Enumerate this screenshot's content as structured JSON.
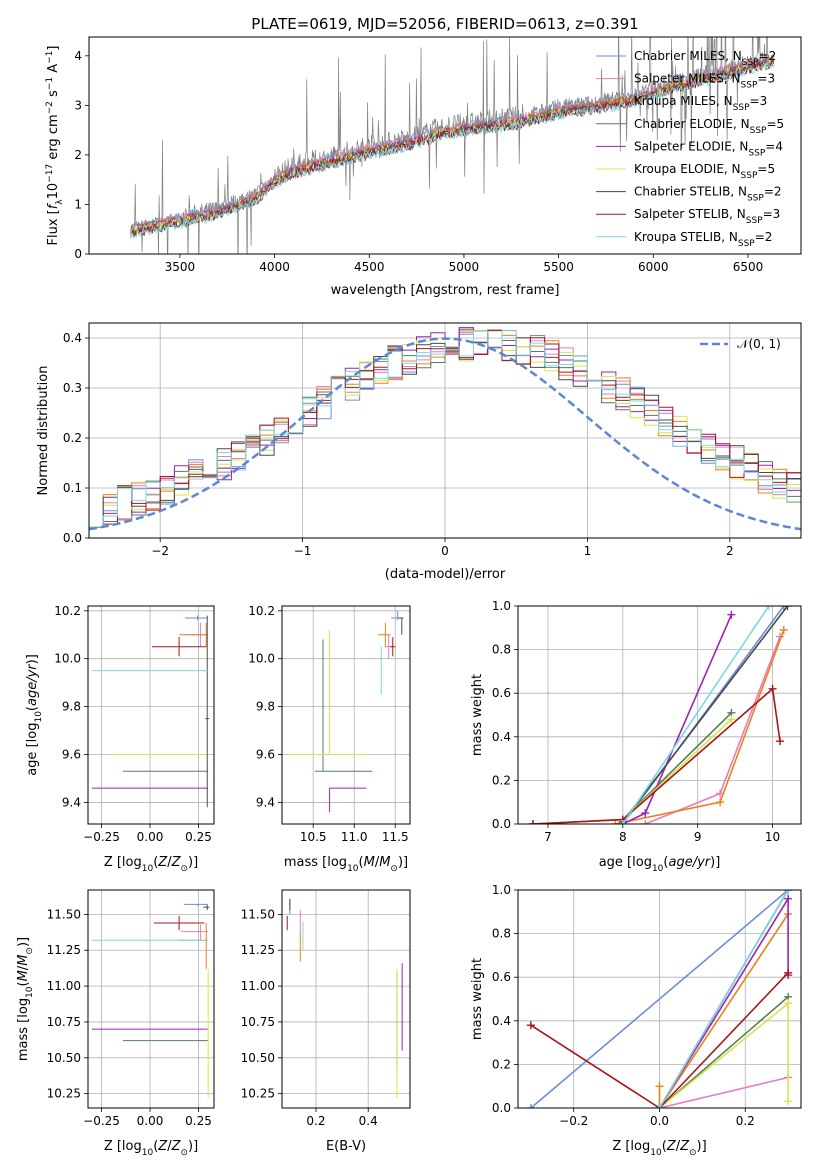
{
  "figure_title": "PLATE=0619, MJD=52056, FIBERID=0613, z=0.391",
  "colors": {
    "chabrier_miles": "#6a8fd8",
    "salpeter_miles": "#e27fbf",
    "kroupa_miles": "#ef7f1a",
    "chabrier_elodie": "#527e5a",
    "salpeter_elodie": "#9b24b5",
    "kroupa_elodie": "#d6e64a",
    "chabrier_stelib": "#4a4a4a",
    "salpeter_stelib": "#a8151b",
    "kroupa_stelib": "#7ad9e0",
    "data": "#808080",
    "normal": "#5b87d6"
  },
  "legend_spectrum": [
    {
      "text": "Chabrier MILES, N",
      "sub": "SSP",
      "tail": "=2",
      "key": "chabrier_miles"
    },
    {
      "text": "Salpeter MILES, N",
      "sub": "SSP",
      "tail": "=3",
      "key": "salpeter_miles"
    },
    {
      "text": "Kroupa MILES, N",
      "sub": "SSP",
      "tail": "=3",
      "key": "kroupa_miles"
    },
    {
      "text": "Chabrier ELODIE, N",
      "sub": "SSP",
      "tail": "=5",
      "key": "chabrier_elodie"
    },
    {
      "text": "Salpeter ELODIE, N",
      "sub": "SSP",
      "tail": "=4",
      "key": "salpeter_elodie"
    },
    {
      "text": "Kroupa ELODIE, N",
      "sub": "SSP",
      "tail": "=5",
      "key": "kroupa_elodie"
    },
    {
      "text": "Chabrier STELIB, N",
      "sub": "SSP",
      "tail": "=2",
      "key": "chabrier_stelib"
    },
    {
      "text": "Salpeter STELIB, N",
      "sub": "SSP",
      "tail": "=3",
      "key": "salpeter_stelib"
    },
    {
      "text": "Kroupa STELIB, N",
      "sub": "SSP",
      "tail": "=2",
      "key": "kroupa_stelib"
    }
  ],
  "legend_residual": "𝒩(0, 1)",
  "chart_data": [
    {
      "id": "spectrum",
      "type": "line",
      "xlabel": "wavelength [Angstrom, rest frame]",
      "ylabel": "Flux [f_λ10^-17 erg cm^-2 s^-1 A^-1]",
      "xlim": [
        3020,
        6780
      ],
      "ylim": [
        0,
        4.38
      ],
      "xticks": [
        3500,
        4000,
        4500,
        5000,
        5500,
        6000,
        6500
      ],
      "yticks": [
        0,
        1,
        2,
        3,
        4
      ],
      "grid": false,
      "legend": "upper-right",
      "continuum": {
        "x": [
          3240,
          3500,
          3700,
          3900,
          4000,
          4100,
          4300,
          4500,
          4700,
          4900,
          5100,
          5300,
          5500,
          5700,
          5900,
          6100,
          6300,
          6500,
          6600
        ],
        "y": [
          0.55,
          0.75,
          0.92,
          1.2,
          1.55,
          1.75,
          1.95,
          2.15,
          2.3,
          2.55,
          2.65,
          2.75,
          2.95,
          3.05,
          3.2,
          3.45,
          3.65,
          3.85,
          3.95
        ]
      }
    },
    {
      "id": "residuals",
      "type": "bar",
      "xlabel": "(data-model)/error",
      "ylabel": "Normed distribution",
      "xlim": [
        -2.5,
        2.5
      ],
      "ylim": [
        0,
        0.43
      ],
      "xticks": [
        -2,
        -1,
        0,
        1,
        2
      ],
      "yticks": [
        0.0,
        0.1,
        0.2,
        0.3,
        0.4
      ],
      "grid": true,
      "legend": "upper-right",
      "bins": {
        "start": -2.5,
        "width": 0.1
      }
    },
    {
      "id": "age_vs_Z",
      "type": "scatter",
      "xlabel": "Z [log10(Z/Z⊙)]",
      "ylabel": "age [log10(age/yr)]",
      "xlim": [
        -0.32,
        0.33
      ],
      "ylim": [
        9.31,
        10.22
      ],
      "xticks": [
        -0.25,
        0.0,
        0.25
      ],
      "yticks": [
        9.4,
        9.6,
        9.8,
        10.0,
        10.2
      ],
      "grid": true,
      "points": [
        {
          "key": "chabrier_miles",
          "x": 0.245,
          "y": 10.17,
          "xerr": [
            0.065,
            0.055
          ],
          "yerr": [
            0.01,
            0.01
          ]
        },
        {
          "key": "salpeter_miles",
          "x": 0.26,
          "y": 10.1,
          "xerr": [
            0.08,
            0.04
          ],
          "yerr": [
            0.05,
            0.05
          ]
        },
        {
          "key": "kroupa_miles",
          "x": 0.29,
          "y": 10.1,
          "xerr": [
            0.14,
            0.01
          ],
          "yerr": [
            0.05,
            0.05
          ]
        },
        {
          "key": "chabrier_elodie",
          "x": 0.08,
          "y": 9.53,
          "xerr": [
            0.22,
            0.22
          ],
          "yerr": [
            0.0,
            0.0
          ]
        },
        {
          "key": "salpeter_elodie",
          "x": 0.0,
          "y": 9.46,
          "xerr": [
            0.3,
            0.3
          ],
          "yerr": [
            0.0,
            0.0
          ]
        },
        {
          "key": "kroupa_elodie",
          "x": 0.05,
          "y": 9.6,
          "xerr": [
            0.25,
            0.25
          ],
          "yerr": [
            0.0,
            0.0
          ]
        },
        {
          "key": "chabrier_stelib",
          "x": 0.295,
          "y": 9.75,
          "xerr": [
            0.01,
            0.01
          ],
          "yerr": [
            0.37,
            0.43
          ]
        },
        {
          "key": "salpeter_stelib",
          "x": 0.15,
          "y": 10.05,
          "xerr": [
            0.14,
            0.14
          ],
          "yerr": [
            0.04,
            0.04
          ]
        },
        {
          "key": "kroupa_stelib",
          "x": 0.0,
          "y": 9.95,
          "xerr": [
            0.3,
            0.3
          ],
          "yerr": [
            0.0,
            0.0
          ]
        }
      ]
    },
    {
      "id": "age_vs_mass",
      "type": "scatter",
      "xlabel": "mass [log10(M/M⊙)]",
      "ylabel": "",
      "xlim": [
        10.12,
        11.68
      ],
      "ylim": [
        9.31,
        10.22
      ],
      "xticks": [
        10.5,
        11.0,
        11.5
      ],
      "yticks": [
        9.4,
        9.6,
        9.8,
        10.0,
        10.2
      ],
      "grid": true,
      "points": [
        {
          "key": "chabrier_miles",
          "x": 11.53,
          "y": 10.17,
          "xerr": [
            0.08,
            0.04
          ],
          "yerr": [
            0.01,
            0.03
          ]
        },
        {
          "key": "salpeter_miles",
          "x": 11.42,
          "y": 10.05,
          "xerr": [
            0.05,
            0.05
          ],
          "yerr": [
            0.05,
            0.05
          ]
        },
        {
          "key": "kroupa_miles",
          "x": 11.38,
          "y": 10.1,
          "xerr": [
            0.09,
            0.06
          ],
          "yerr": [
            0.05,
            0.05
          ]
        },
        {
          "key": "chabrier_elodie",
          "x": 10.62,
          "y": 9.53,
          "xerr": [
            0.1,
            0.6
          ],
          "yerr": [
            0.0,
            0.55
          ]
        },
        {
          "key": "salpeter_elodie",
          "x": 10.7,
          "y": 9.46,
          "xerr": [
            0.0,
            0.45
          ],
          "yerr": [
            0.1,
            0.0
          ]
        },
        {
          "key": "kroupa_elodie",
          "x": 10.7,
          "y": 9.6,
          "xerr": [
            0.5,
            0.45
          ],
          "yerr": [
            0.0,
            0.52
          ]
        },
        {
          "key": "chabrier_stelib",
          "x": 11.58,
          "y": 10.17,
          "xerr": [
            0.04,
            0.02
          ],
          "yerr": [
            0.07,
            0.0
          ]
        },
        {
          "key": "salpeter_stelib",
          "x": 11.47,
          "y": 10.05,
          "xerr": [
            0.03,
            0.03
          ],
          "yerr": [
            0.04,
            0.04
          ]
        },
        {
          "key": "kroupa_stelib",
          "x": 11.33,
          "y": 10.0,
          "xerr": [
            0.01,
            0.01
          ],
          "yerr": [
            0.15,
            0.05
          ]
        }
      ]
    },
    {
      "id": "weight_vs_age",
      "type": "line",
      "xlabel": "age [log10(age/yr)]",
      "ylabel": "mass weight",
      "xlim": [
        6.6,
        10.38
      ],
      "ylim": [
        0,
        1.0
      ],
      "xticks": [
        7,
        8,
        9,
        10
      ],
      "yticks": [
        0.0,
        0.2,
        0.4,
        0.6,
        0.8,
        1.0
      ],
      "grid": true,
      "series": [
        {
          "key": "chabrier_miles",
          "x": [
            8.0,
            10.15
          ],
          "y": [
            0.0,
            1.0
          ]
        },
        {
          "key": "salpeter_miles",
          "x": [
            8.3,
            9.3,
            10.1
          ],
          "y": [
            0.0,
            0.14,
            0.86
          ]
        },
        {
          "key": "kroupa_miles",
          "x": [
            7.9,
            9.3,
            10.15
          ],
          "y": [
            0.0,
            0.1,
            0.89
          ]
        },
        {
          "key": "chabrier_elodie",
          "x": [
            6.8,
            8.0,
            9.45
          ],
          "y": [
            0.0,
            0.02,
            0.51
          ]
        },
        {
          "key": "salpeter_elodie",
          "x": [
            8.0,
            8.3,
            9.45
          ],
          "y": [
            0.0,
            0.05,
            0.96
          ]
        },
        {
          "key": "kroupa_elodie",
          "x": [
            6.8,
            8.0,
            9.45
          ],
          "y": [
            0.0,
            0.02,
            0.48
          ]
        },
        {
          "key": "chabrier_stelib",
          "x": [
            8.0,
            10.2
          ],
          "y": [
            0.01,
            1.0
          ]
        },
        {
          "key": "salpeter_stelib",
          "x": [
            6.8,
            8.0,
            10.0,
            10.1
          ],
          "y": [
            0.0,
            0.02,
            0.62,
            0.38
          ]
        },
        {
          "key": "kroupa_stelib",
          "x": [
            8.0,
            9.95
          ],
          "y": [
            0.0,
            1.0
          ]
        }
      ]
    },
    {
      "id": "mass_vs_Z",
      "type": "scatter",
      "xlabel": "Z [log10(Z/Z⊙)]",
      "ylabel": "mass [log10(M/M⊙)]",
      "xlim": [
        -0.32,
        0.33
      ],
      "ylim": [
        10.15,
        11.67
      ],
      "xticks": [
        -0.25,
        0.0,
        0.25
      ],
      "yticks": [
        10.25,
        10.5,
        10.75,
        11.0,
        11.25,
        11.5
      ],
      "grid": true,
      "points": [
        {
          "key": "chabrier_miles",
          "x": 0.245,
          "y": 11.57,
          "xerr": [
            0.07,
            0.05
          ],
          "yerr": [
            0.01,
            0.0
          ]
        },
        {
          "key": "salpeter_miles",
          "x": 0.26,
          "y": 11.38,
          "xerr": [
            0.1,
            0.04
          ],
          "yerr": [
            0.06,
            0.05
          ]
        },
        {
          "key": "kroupa_miles",
          "x": 0.29,
          "y": 11.32,
          "xerr": [
            0.14,
            0.01
          ],
          "yerr": [
            0.2,
            0.12
          ]
        },
        {
          "key": "chabrier_elodie",
          "x": 0.08,
          "y": 10.62,
          "xerr": [
            0.22,
            0.22
          ],
          "yerr": [
            0.0,
            0.0
          ]
        },
        {
          "key": "salpeter_elodie",
          "x": 0.0,
          "y": 10.7,
          "xerr": [
            0.3,
            0.3
          ],
          "yerr": [
            0.0,
            0.0
          ]
        },
        {
          "key": "kroupa_elodie",
          "x": 0.3,
          "y": 10.7,
          "xerr": [
            0.0,
            0.0
          ],
          "yerr": [
            0.48,
            0.42
          ]
        },
        {
          "key": "chabrier_stelib",
          "x": 0.295,
          "y": 11.55,
          "xerr": [
            0.02,
            0.01
          ],
          "yerr": [
            0.02,
            0.02
          ]
        },
        {
          "key": "salpeter_stelib",
          "x": 0.15,
          "y": 11.44,
          "xerr": [
            0.13,
            0.13
          ],
          "yerr": [
            0.05,
            0.05
          ]
        },
        {
          "key": "kroupa_stelib",
          "x": 0.0,
          "y": 11.32,
          "xerr": [
            0.3,
            0.3
          ],
          "yerr": [
            0.0,
            0.0
          ]
        }
      ]
    },
    {
      "id": "mass_vs_EBV",
      "type": "scatter",
      "xlabel": "E(B-V)",
      "ylabel": "",
      "xlim": [
        0.07,
        0.56
      ],
      "ylim": [
        10.15,
        11.67
      ],
      "xticks": [
        0.2,
        0.4
      ],
      "yticks": [
        10.25,
        10.5,
        10.75,
        11.0,
        11.25,
        11.5
      ],
      "grid": true,
      "points": [
        {
          "key": "chabrier_miles",
          "x": 0.1,
          "y": 11.55,
          "xerr": [
            0.0,
            0.0
          ],
          "yerr": [
            0.05,
            0.05
          ]
        },
        {
          "key": "salpeter_miles",
          "x": 0.14,
          "y": 11.45,
          "xerr": [
            0.0,
            0.0
          ],
          "yerr": [
            0.08,
            0.08
          ]
        },
        {
          "key": "kroupa_miles",
          "x": 0.14,
          "y": 11.32,
          "xerr": [
            0.0,
            0.0
          ],
          "yerr": [
            0.15,
            0.05
          ]
        },
        {
          "key": "chabrier_elodie",
          "x": 0.51,
          "y": 10.62,
          "xerr": [
            0.0,
            0.0
          ],
          "yerr": [
            0.2,
            0.48
          ]
        },
        {
          "key": "salpeter_elodie",
          "x": 0.53,
          "y": 10.7,
          "xerr": [
            0.0,
            0.0
          ],
          "yerr": [
            0.15,
            0.46
          ]
        },
        {
          "key": "kroupa_elodie",
          "x": 0.51,
          "y": 10.7,
          "xerr": [
            0.0,
            0.0
          ],
          "yerr": [
            0.48,
            0.42
          ]
        },
        {
          "key": "chabrier_stelib",
          "x": 0.1,
          "y": 11.57,
          "xerr": [
            0.0,
            0.0
          ],
          "yerr": [
            0.04,
            0.04
          ]
        },
        {
          "key": "salpeter_stelib",
          "x": 0.09,
          "y": 11.44,
          "xerr": [
            0.0,
            0.0
          ],
          "yerr": [
            0.05,
            0.05
          ]
        },
        {
          "key": "kroupa_stelib",
          "x": 0.15,
          "y": 11.35,
          "xerr": [
            0.0,
            0.0
          ],
          "yerr": [
            0.1,
            0.1
          ]
        }
      ]
    },
    {
      "id": "weight_vs_Z",
      "type": "line",
      "xlabel": "Z [log10(Z/Z⊙)]",
      "ylabel": "mass weight",
      "xlim": [
        -0.33,
        0.33
      ],
      "ylim": [
        0,
        1.0
      ],
      "xticks": [
        -0.2,
        0.0,
        0.2
      ],
      "yticks": [
        0.0,
        0.2,
        0.4,
        0.6,
        0.8,
        1.0
      ],
      "grid": true,
      "series": [
        {
          "key": "chabrier_miles",
          "x": [
            -0.3,
            0.3
          ],
          "y": [
            0.0,
            1.0
          ]
        },
        {
          "key": "salpeter_miles",
          "x": [
            0.0,
            0.3
          ],
          "y": [
            0.0,
            0.14
          ]
        },
        {
          "key": "kroupa_miles",
          "x": [
            0.0,
            0.0,
            0.3
          ],
          "y": [
            0.1,
            0.0,
            0.89
          ]
        },
        {
          "key": "chabrier_elodie",
          "x": [
            0.0,
            0.3
          ],
          "y": [
            0.0,
            0.51
          ]
        },
        {
          "key": "salpeter_elodie",
          "x": [
            0.0,
            0.3,
            0.3
          ],
          "y": [
            0.0,
            0.96,
            0.61
          ]
        },
        {
          "key": "kroupa_elodie",
          "x": [
            0.0,
            0.3,
            0.3
          ],
          "y": [
            0.0,
            0.48,
            0.03
          ]
        },
        {
          "key": "chabrier_stelib",
          "x": [
            0.0,
            0.3
          ],
          "y": [
            0.0,
            1.0
          ]
        },
        {
          "key": "salpeter_stelib",
          "x": [
            -0.3,
            0.0,
            0.3
          ],
          "y": [
            0.38,
            0.0,
            0.62
          ]
        },
        {
          "key": "kroupa_stelib",
          "x": [
            0.0,
            0.3
          ],
          "y": [
            0.0,
            1.0
          ]
        }
      ]
    }
  ]
}
